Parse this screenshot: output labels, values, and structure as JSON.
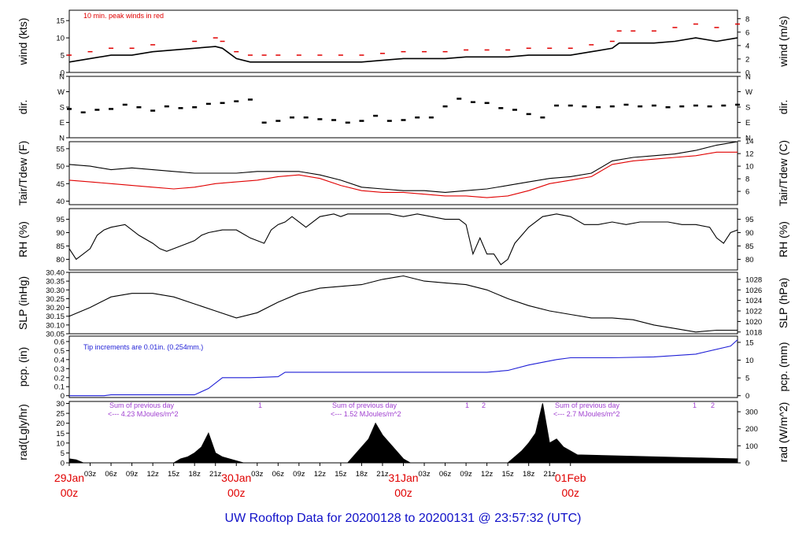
{
  "footer_title": "UW Rooftop Data for 20200128  to  20200131 @ 23:57:32  (UTC)",
  "colors": {
    "black": "#000000",
    "red": "#e00000",
    "blue": "#1f1fd6",
    "purple": "#a040d0",
    "footer": "#1010c8"
  },
  "chart_data": [
    {
      "type": "line",
      "id": "wind",
      "ylabel_left": "wind (kts)",
      "ylabel_right": "wind (m/s)",
      "ylim": [
        0,
        18
      ],
      "yticks": [
        0,
        5,
        10,
        15
      ],
      "right_ticks": [
        {
          "label": "0",
          "v": 0
        },
        {
          "label": "2",
          "v": 3.89
        },
        {
          "label": "4",
          "v": 7.78
        },
        {
          "label": "6",
          "v": 11.66
        },
        {
          "label": "8",
          "v": 15.55
        }
      ],
      "annotations": [
        {
          "text": "10 min. peak winds in red",
          "color": "#e00000"
        }
      ],
      "series": [
        {
          "color": "#000000",
          "x": [
            0,
            3,
            6,
            9,
            12,
            18,
            21,
            22,
            24,
            26,
            28,
            30,
            33,
            36,
            39,
            42,
            45,
            48,
            51,
            54,
            57,
            60,
            63,
            66,
            69,
            72,
            75,
            78,
            79,
            81,
            84,
            87,
            90,
            93,
            96
          ],
          "y": [
            3,
            4,
            5,
            5,
            6,
            7,
            7.5,
            7,
            4,
            3,
            3,
            3,
            3,
            3,
            3,
            3,
            3.5,
            4,
            4,
            4,
            4.5,
            4.5,
            4.5,
            5,
            5,
            5,
            6,
            7,
            8.5,
            8.5,
            8.5,
            9,
            10,
            9,
            10
          ]
        },
        {
          "color": "#e00000",
          "peaks": true,
          "x": [
            0,
            3,
            6,
            9,
            12,
            18,
            21,
            22,
            24,
            26,
            28,
            30,
            33,
            36,
            39,
            42,
            45,
            48,
            51,
            54,
            57,
            60,
            63,
            66,
            69,
            72,
            75,
            78,
            79,
            81,
            84,
            87,
            90,
            93,
            96
          ],
          "y": [
            5,
            6,
            7,
            7,
            8,
            9,
            10,
            9,
            6,
            5,
            5,
            5,
            5,
            5,
            5,
            5,
            5.5,
            6,
            6,
            6,
            6.5,
            6.5,
            6.5,
            7,
            7,
            7,
            8,
            9,
            12,
            12,
            12,
            13,
            14,
            13,
            14
          ]
        }
      ]
    },
    {
      "type": "scatter",
      "id": "dir",
      "ylabel_left": "dir.",
      "ylabel_right": "dir.",
      "ylim": [
        0,
        360
      ],
      "ytick_labels": [
        "N",
        "E",
        "S",
        "W",
        "N"
      ],
      "ytick_values": [
        0,
        90,
        180,
        270,
        360
      ],
      "series": [
        {
          "color": "#000000",
          "x": [
            0,
            2,
            4,
            6,
            8,
            10,
            12,
            14,
            16,
            18,
            20,
            22,
            24,
            26,
            28,
            30,
            32,
            34,
            36,
            38,
            40,
            42,
            44,
            46,
            48,
            50,
            52,
            54,
            56,
            58,
            60,
            62,
            64,
            66,
            68,
            70,
            72,
            74,
            76,
            78,
            80,
            82,
            84,
            86,
            88,
            90,
            92,
            94,
            96
          ],
          "y": [
            170,
            150,
            165,
            170,
            195,
            180,
            160,
            185,
            175,
            180,
            200,
            205,
            215,
            225,
            90,
            100,
            120,
            120,
            110,
            105,
            90,
            100,
            130,
            100,
            105,
            120,
            120,
            185,
            230,
            210,
            205,
            175,
            165,
            140,
            120,
            190,
            190,
            185,
            180,
            185,
            195,
            185,
            190,
            180,
            185,
            190,
            185,
            190,
            195
          ]
        }
      ]
    },
    {
      "type": "line",
      "id": "temp",
      "ylabel_left": "Tair/Tdew (F)",
      "ylabel_right": "Tair/Tdew (C)",
      "ylim": [
        39,
        57
      ],
      "yticks": [
        40,
        45,
        50,
        55
      ],
      "right_ticks": [
        {
          "label": "6",
          "v": 42.8
        },
        {
          "label": "8",
          "v": 46.4
        },
        {
          "label": "10",
          "v": 50
        },
        {
          "label": "12",
          "v": 53.6
        },
        {
          "label": "14",
          "v": 57.2
        }
      ],
      "series": [
        {
          "name": "Tair",
          "color": "#000000",
          "x": [
            0,
            3,
            6,
            9,
            12,
            15,
            18,
            21,
            24,
            27,
            30,
            33,
            36,
            39,
            42,
            45,
            48,
            51,
            54,
            57,
            60,
            63,
            66,
            69,
            72,
            75,
            78,
            81,
            84,
            87,
            90,
            93,
            96
          ],
          "y": [
            50.5,
            50,
            49,
            49.5,
            49,
            48.5,
            48,
            48,
            48,
            48.5,
            48.5,
            48.5,
            47.5,
            46,
            44,
            43.5,
            43,
            43,
            42.5,
            43,
            43.5,
            44.5,
            45.5,
            46.5,
            47,
            48,
            51.5,
            52.5,
            53,
            53.5,
            54.5,
            56,
            57
          ]
        },
        {
          "name": "Tdew",
          "color": "#e00000",
          "x": [
            0,
            3,
            6,
            9,
            12,
            15,
            18,
            21,
            24,
            27,
            30,
            33,
            36,
            39,
            42,
            45,
            48,
            51,
            54,
            57,
            60,
            63,
            66,
            69,
            72,
            75,
            78,
            81,
            84,
            87,
            90,
            93,
            96
          ],
          "y": [
            46,
            45.5,
            45,
            44.5,
            44,
            43.5,
            44,
            45,
            45.5,
            46,
            47,
            47.5,
            46.5,
            44.5,
            43,
            42.5,
            42.5,
            42,
            41.5,
            41.5,
            41,
            41.5,
            43,
            45,
            46,
            47,
            50.5,
            51.5,
            52,
            52.5,
            53,
            54,
            54
          ]
        }
      ]
    },
    {
      "type": "line",
      "id": "rh",
      "ylabel_left": "RH (%)",
      "ylabel_right": "RH (%)",
      "ylim": [
        76,
        99
      ],
      "yticks": [
        80,
        85,
        90,
        95
      ],
      "right_ticks": [
        {
          "label": "80",
          "v": 80
        },
        {
          "label": "85",
          "v": 85
        },
        {
          "label": "90",
          "v": 90
        },
        {
          "label": "95",
          "v": 95
        }
      ],
      "series": [
        {
          "color": "#000000",
          "x": [
            0,
            1,
            2,
            3,
            4,
            5,
            6,
            8,
            10,
            12,
            13,
            14,
            15,
            16,
            17,
            18,
            19,
            20,
            22,
            24,
            26,
            28,
            29,
            30,
            31,
            32,
            34,
            36,
            38,
            39,
            40,
            42,
            44,
            46,
            48,
            50,
            52,
            54,
            56,
            57,
            58,
            59,
            60,
            61,
            62,
            63,
            64,
            66,
            68,
            70,
            72,
            74,
            76,
            78,
            80,
            82,
            84,
            86,
            88,
            90,
            92,
            93,
            94,
            95,
            96
          ],
          "y": [
            84,
            80,
            82,
            84,
            89,
            91,
            92,
            93,
            89,
            86,
            84,
            83,
            84,
            85,
            86,
            87,
            89,
            90,
            91,
            91,
            88,
            86,
            91,
            93,
            94,
            96,
            92,
            96,
            97,
            96,
            97,
            97,
            97,
            97,
            96,
            97,
            96,
            95,
            95,
            93,
            82,
            88,
            82,
            82,
            78,
            80,
            86,
            92,
            96,
            97,
            96,
            93,
            93,
            94,
            93,
            94,
            94,
            94,
            93,
            93,
            92,
            88,
            86,
            90,
            91
          ]
        }
      ]
    },
    {
      "type": "line",
      "id": "slp",
      "ylabel_left": "SLP (inHg)",
      "ylabel_right": "SLP (hPa)",
      "ylim": [
        30.05,
        30.4
      ],
      "yticks": [
        30.05,
        30.1,
        30.15,
        30.2,
        30.25,
        30.3,
        30.35,
        30.4
      ],
      "ytick_labels": [
        "30.05",
        "30.10",
        "30.15",
        "30.20",
        "30.25",
        "30.30",
        "30.35",
        "30.40"
      ],
      "right_ticks": [
        {
          "label": "1018",
          "v": 30.06
        },
        {
          "label": "1020",
          "v": 30.12
        },
        {
          "label": "1022",
          "v": 30.18
        },
        {
          "label": "1024",
          "v": 30.24
        },
        {
          "label": "1026",
          "v": 30.3
        },
        {
          "label": "1028",
          "v": 30.36
        }
      ],
      "series": [
        {
          "color": "#000000",
          "x": [
            0,
            3,
            6,
            9,
            12,
            15,
            18,
            21,
            24,
            27,
            30,
            33,
            36,
            39,
            42,
            45,
            48,
            51,
            54,
            57,
            60,
            63,
            66,
            69,
            72,
            75,
            78,
            81,
            84,
            87,
            90,
            93,
            96
          ],
          "y": [
            30.15,
            30.2,
            30.26,
            30.28,
            30.28,
            30.26,
            30.22,
            30.18,
            30.14,
            30.17,
            30.23,
            30.28,
            30.31,
            30.32,
            30.33,
            30.36,
            30.38,
            30.35,
            30.34,
            30.33,
            30.3,
            30.25,
            30.21,
            30.18,
            30.16,
            30.14,
            30.14,
            30.13,
            30.1,
            30.08,
            30.06,
            30.07,
            30.07
          ]
        }
      ]
    },
    {
      "type": "line",
      "id": "pcp",
      "ylabel_left": "pcp. (in)",
      "ylabel_right": "pcp. (mm)",
      "ylim": [
        -0.02,
        0.66
      ],
      "yticks": [
        0,
        0.1,
        0.2,
        0.3,
        0.4,
        0.5,
        0.6
      ],
      "ytick_labels": [
        "0",
        "0.1",
        "0.2",
        "0.3",
        "0.4",
        "0.5",
        "0.6"
      ],
      "right_ticks": [
        {
          "label": "0",
          "v": 0
        },
        {
          "label": "5",
          "v": 0.197
        },
        {
          "label": "10",
          "v": 0.394
        },
        {
          "label": "15",
          "v": 0.591
        }
      ],
      "annotations": [
        {
          "text": "Tip increments are 0.01in. (0.254mm.)",
          "color": "#1f1fd6"
        }
      ],
      "series": [
        {
          "color": "#1f1fd6",
          "x": [
            0,
            5,
            6,
            18,
            20,
            22,
            26,
            30,
            31,
            32,
            45,
            60,
            63,
            66,
            70,
            72,
            78,
            84,
            90,
            95,
            96
          ],
          "y": [
            0,
            0,
            0.01,
            0.01,
            0.08,
            0.2,
            0.2,
            0.21,
            0.26,
            0.26,
            0.26,
            0.26,
            0.28,
            0.34,
            0.4,
            0.42,
            0.42,
            0.43,
            0.46,
            0.55,
            0.62
          ]
        }
      ]
    },
    {
      "type": "area",
      "id": "rad",
      "ylabel_left": "rad(Lgly/hr)",
      "ylabel_right": "rad (W/m^2)",
      "ylim": [
        0,
        31
      ],
      "yticks": [
        0,
        5,
        10,
        15,
        20,
        25,
        30
      ],
      "right_ticks": [
        {
          "label": "0",
          "v": 0
        },
        {
          "label": "100",
          "v": 8.6
        },
        {
          "label": "200",
          "v": 17.2
        },
        {
          "label": "300",
          "v": 25.8
        }
      ],
      "annotations": [
        {
          "text": "Sum of previous day",
          "color": "#a040d0"
        },
        {
          "text": "<--- 4.23 MJoules/m^2",
          "color": "#a040d0"
        },
        {
          "text": "Sum of previous day",
          "color": "#a040d0"
        },
        {
          "text": "<--- 1.52 MJoules/m^2",
          "color": "#a040d0"
        },
        {
          "text": "Sum of previous day",
          "color": "#a040d0"
        },
        {
          "text": "<--- 2.7 MJoules/m^2",
          "color": "#a040d0"
        },
        {
          "text": "1",
          "color": "#a040d0"
        },
        {
          "text": "1",
          "color": "#a040d0"
        },
        {
          "text": "2",
          "color": "#a040d0"
        },
        {
          "text": "1",
          "color": "#a040d0"
        },
        {
          "text": "2",
          "color": "#a040d0"
        }
      ],
      "series": [
        {
          "color": "#000000",
          "x": [
            0,
            1,
            2,
            3,
            15,
            16,
            17,
            18,
            19,
            20,
            21,
            22,
            23,
            24,
            25,
            39,
            40,
            41,
            42,
            43,
            44,
            45,
            46,
            47,
            48,
            49,
            63,
            64,
            65,
            66,
            67,
            68,
            69,
            70,
            71,
            72,
            73,
            96
          ],
          "y": [
            2,
            1.5,
            0,
            0,
            0,
            2,
            3,
            5,
            8,
            15,
            5,
            3,
            2,
            1,
            0,
            0,
            0,
            4,
            8,
            12,
            20,
            14,
            10,
            6,
            2,
            0,
            0,
            3,
            6,
            10,
            15,
            30,
            10,
            12,
            8,
            6,
            4,
            2
          ]
        }
      ]
    }
  ],
  "x_axis": {
    "range_hours": [
      0,
      96
    ],
    "hour_labels": [
      "03z",
      "06z",
      "09z",
      "12z",
      "15z",
      "18z",
      "21z",
      "03z",
      "06z",
      "09z",
      "12z",
      "15z",
      "18z",
      "21z",
      "03z",
      "06z",
      "09z",
      "12z",
      "15z",
      "18z",
      "21z"
    ],
    "day_labels": [
      {
        "date": "29Jan",
        "time": "00z"
      },
      {
        "date": "30Jan",
        "time": "00z"
      },
      {
        "date": "31Jan",
        "time": "00z"
      },
      {
        "date": "01Feb",
        "time": "00z"
      }
    ]
  }
}
